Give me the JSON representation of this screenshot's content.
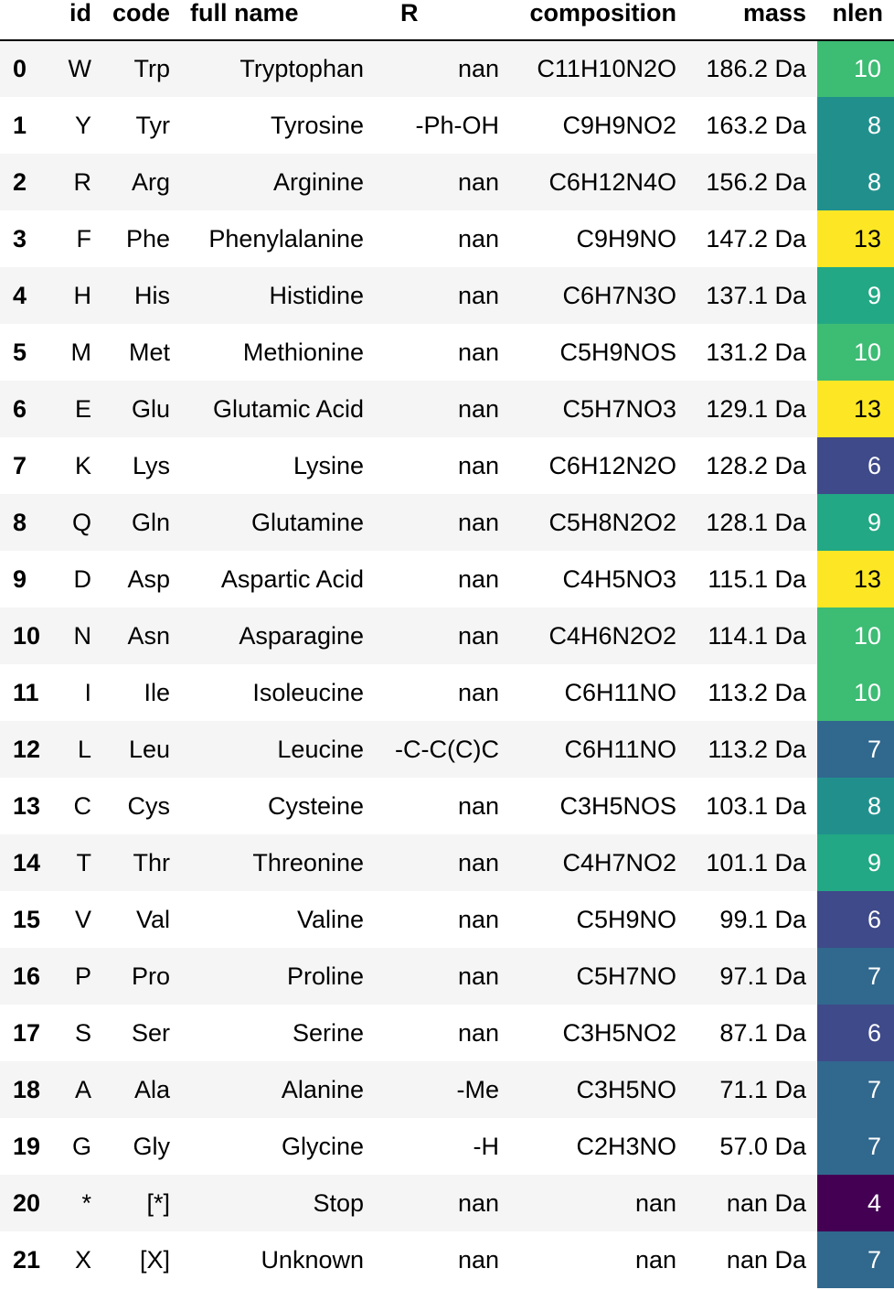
{
  "columns": [
    "",
    "id",
    "code",
    "full name",
    "R",
    "composition",
    "mass",
    "nlen"
  ],
  "rows": [
    {
      "index": "0",
      "id": "W",
      "code": "Trp",
      "full_name": "Tryptophan",
      "R": "nan",
      "composition": "C11H10N2O",
      "mass": "186.2 Da",
      "nlen": "10",
      "nlen_color": "#3dbc74"
    },
    {
      "index": "1",
      "id": "Y",
      "code": "Tyr",
      "full_name": "Tyrosine",
      "R": "-Ph-OH",
      "composition": "C9H9NO2",
      "mass": "163.2 Da",
      "nlen": "8",
      "nlen_color": "#21908d"
    },
    {
      "index": "2",
      "id": "R",
      "code": "Arg",
      "full_name": "Arginine",
      "R": "nan",
      "composition": "C6H12N4O",
      "mass": "156.2 Da",
      "nlen": "8",
      "nlen_color": "#21908d"
    },
    {
      "index": "3",
      "id": "F",
      "code": "Phe",
      "full_name": "Phenylalanine",
      "R": "nan",
      "composition": "C9H9NO",
      "mass": "147.2 Da",
      "nlen": "13",
      "nlen_color": "#fde725",
      "nlen_dark": true
    },
    {
      "index": "4",
      "id": "H",
      "code": "His",
      "full_name": "Histidine",
      "R": "nan",
      "composition": "C6H7N3O",
      "mass": "137.1 Da",
      "nlen": "9",
      "nlen_color": "#22a884"
    },
    {
      "index": "5",
      "id": "M",
      "code": "Met",
      "full_name": "Methionine",
      "R": "nan",
      "composition": "C5H9NOS",
      "mass": "131.2 Da",
      "nlen": "10",
      "nlen_color": "#3dbc74"
    },
    {
      "index": "6",
      "id": "E",
      "code": "Glu",
      "full_name": "Glutamic Acid",
      "R": "nan",
      "composition": "C5H7NO3",
      "mass": "129.1 Da",
      "nlen": "13",
      "nlen_color": "#fde725",
      "nlen_dark": true
    },
    {
      "index": "7",
      "id": "K",
      "code": "Lys",
      "full_name": "Lysine",
      "R": "nan",
      "composition": "C6H12N2O",
      "mass": "128.2 Da",
      "nlen": "6",
      "nlen_color": "#3e4a89"
    },
    {
      "index": "8",
      "id": "Q",
      "code": "Gln",
      "full_name": "Glutamine",
      "R": "nan",
      "composition": "C5H8N2O2",
      "mass": "128.1 Da",
      "nlen": "9",
      "nlen_color": "#22a884"
    },
    {
      "index": "9",
      "id": "D",
      "code": "Asp",
      "full_name": "Aspartic Acid",
      "R": "nan",
      "composition": "C4H5NO3",
      "mass": "115.1 Da",
      "nlen": "13",
      "nlen_color": "#fde725",
      "nlen_dark": true
    },
    {
      "index": "10",
      "id": "N",
      "code": "Asn",
      "full_name": "Asparagine",
      "R": "nan",
      "composition": "C4H6N2O2",
      "mass": "114.1 Da",
      "nlen": "10",
      "nlen_color": "#3dbc74"
    },
    {
      "index": "11",
      "id": "I",
      "code": "Ile",
      "full_name": "Isoleucine",
      "R": "nan",
      "composition": "C6H11NO",
      "mass": "113.2 Da",
      "nlen": "10",
      "nlen_color": "#3dbc74"
    },
    {
      "index": "12",
      "id": "L",
      "code": "Leu",
      "full_name": "Leucine",
      "R": "-C-C(C)C",
      "composition": "C6H11NO",
      "mass": "113.2 Da",
      "nlen": "7",
      "nlen_color": "#31688e"
    },
    {
      "index": "13",
      "id": "C",
      "code": "Cys",
      "full_name": "Cysteine",
      "R": "nan",
      "composition": "C3H5NOS",
      "mass": "103.1 Da",
      "nlen": "8",
      "nlen_color": "#21908d"
    },
    {
      "index": "14",
      "id": "T",
      "code": "Thr",
      "full_name": "Threonine",
      "R": "nan",
      "composition": "C4H7NO2",
      "mass": "101.1 Da",
      "nlen": "9",
      "nlen_color": "#22a884"
    },
    {
      "index": "15",
      "id": "V",
      "code": "Val",
      "full_name": "Valine",
      "R": "nan",
      "composition": "C5H9NO",
      "mass": "99.1 Da",
      "nlen": "6",
      "nlen_color": "#3e4a89"
    },
    {
      "index": "16",
      "id": "P",
      "code": "Pro",
      "full_name": "Proline",
      "R": "nan",
      "composition": "C5H7NO",
      "mass": "97.1 Da",
      "nlen": "7",
      "nlen_color": "#31688e"
    },
    {
      "index": "17",
      "id": "S",
      "code": "Ser",
      "full_name": "Serine",
      "R": "nan",
      "composition": "C3H5NO2",
      "mass": "87.1 Da",
      "nlen": "6",
      "nlen_color": "#3e4a89"
    },
    {
      "index": "18",
      "id": "A",
      "code": "Ala",
      "full_name": "Alanine",
      "R": "-Me",
      "composition": "C3H5NO",
      "mass": "71.1 Da",
      "nlen": "7",
      "nlen_color": "#31688e"
    },
    {
      "index": "19",
      "id": "G",
      "code": "Gly",
      "full_name": "Glycine",
      "R": "-H",
      "composition": "C2H3NO",
      "mass": "57.0 Da",
      "nlen": "7",
      "nlen_color": "#31688e"
    },
    {
      "index": "20",
      "id": "*",
      "code": "[*]",
      "full_name": "Stop",
      "R": "nan",
      "composition": "nan",
      "mass": "nan Da",
      "nlen": "4",
      "nlen_color": "#440154"
    },
    {
      "index": "21",
      "id": "X",
      "code": "[X]",
      "full_name": "Unknown",
      "R": "nan",
      "composition": "nan",
      "mass": "nan Da",
      "nlen": "7",
      "nlen_color": "#31688e"
    }
  ]
}
